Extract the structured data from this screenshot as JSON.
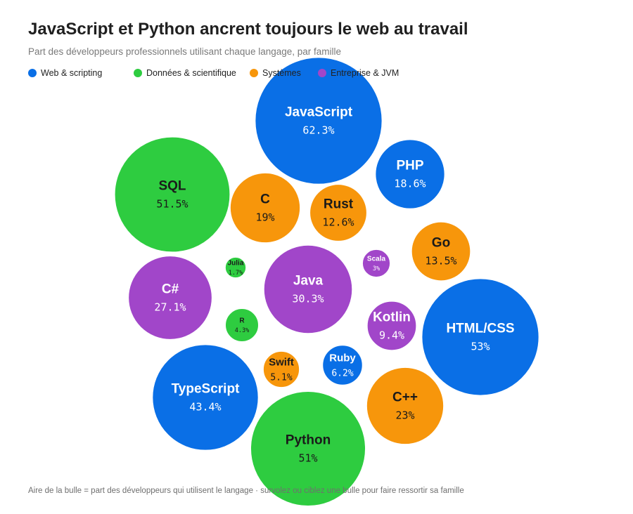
{
  "title": "JavaScript et Python ancrent toujours le web au travail",
  "subtitle": "Part des développeurs professionnels utilisant chaque langage, par famille",
  "footnote": "Aire de la bulle = part des développeurs qui utilisent le langage · survolez ou ciblez une bulle pour faire ressortir sa famille",
  "legend": [
    {
      "label": "Web & scripting",
      "color": "#0a6fe6"
    },
    {
      "label": "Données & scientifique",
      "color": "#2ecc40"
    },
    {
      "label": "Systèmes",
      "color": "#f7960b"
    },
    {
      "label": "Entreprise & JVM",
      "color": "#a146c9"
    }
  ],
  "chart_data": {
    "type": "bubble",
    "groups": {
      "web": {
        "label": "Web & scripting",
        "color": "#0a6fe6",
        "text_color": "#ffffff"
      },
      "data": {
        "label": "Données & scientifique",
        "color": "#2ecc40",
        "text_color": "#1a1a1a"
      },
      "systems": {
        "label": "Systèmes",
        "color": "#f7960b",
        "text_color": "#1a1a1a"
      },
      "enterprise": {
        "label": "Entreprise & JVM",
        "color": "#a146c9",
        "text_color": "#ffffff"
      }
    },
    "bubbles": [
      {
        "name": "JavaScript",
        "value": 62.3,
        "label": "62.3%",
        "group": "web"
      },
      {
        "name": "HTML/CSS",
        "value": 53,
        "label": "53%",
        "group": "web"
      },
      {
        "name": "TypeScript",
        "value": 43.4,
        "label": "43.4%",
        "group": "web"
      },
      {
        "name": "PHP",
        "value": 18.6,
        "label": "18.6%",
        "group": "web"
      },
      {
        "name": "Ruby",
        "value": 6.2,
        "label": "6.2%",
        "group": "web"
      },
      {
        "name": "SQL",
        "value": 51.5,
        "label": "51.5%",
        "group": "data"
      },
      {
        "name": "Python",
        "value": 51,
        "label": "51%",
        "group": "data"
      },
      {
        "name": "R",
        "value": 4.3,
        "label": "4.3%",
        "group": "data"
      },
      {
        "name": "Julia",
        "value": 1.7,
        "label": "1.7%",
        "group": "data"
      },
      {
        "name": "C++",
        "value": 23,
        "label": "23%",
        "group": "systems"
      },
      {
        "name": "C",
        "value": 19,
        "label": "19%",
        "group": "systems"
      },
      {
        "name": "Go",
        "value": 13.5,
        "label": "13.5%",
        "group": "systems"
      },
      {
        "name": "Rust",
        "value": 12.6,
        "label": "12.6%",
        "group": "systems"
      },
      {
        "name": "Swift",
        "value": 5.1,
        "label": "5.1%",
        "group": "systems"
      },
      {
        "name": "Java",
        "value": 30.3,
        "label": "30.3%",
        "group": "enterprise"
      },
      {
        "name": "C#",
        "value": 27.1,
        "label": "27.1%",
        "group": "enterprise"
      },
      {
        "name": "Kotlin",
        "value": 9.4,
        "label": "9.4%",
        "group": "enterprise"
      },
      {
        "name": "Scala",
        "value": 3,
        "label": "3%",
        "group": "enterprise"
      }
    ]
  }
}
